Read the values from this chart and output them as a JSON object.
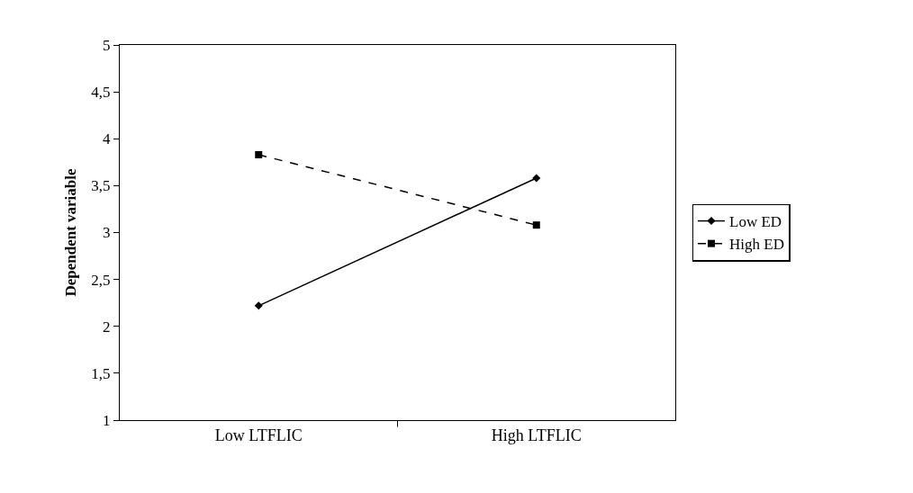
{
  "chart_data": {
    "type": "line",
    "ylabel": "Dependent variable",
    "categories": [
      "Low LTFLIC",
      "High LTFLIC"
    ],
    "series": [
      {
        "name": "Low ED",
        "color": "#000000",
        "values": [
          2.22,
          3.58
        ],
        "marker": "diamond",
        "line_style": "solid"
      },
      {
        "name": "High ED",
        "color": "#000000",
        "values": [
          3.83,
          3.08
        ],
        "marker": "square",
        "line_style": "dashed"
      }
    ],
    "ylim": [
      1,
      5
    ],
    "yticks": [
      1,
      {
        "value": 1.5,
        "label": "1,5"
      },
      2,
      {
        "value": 2.5,
        "label": "2,5"
      },
      3,
      {
        "value": 3.5,
        "label": "3,5"
      },
      4,
      {
        "value": 4.5,
        "label": "4,5"
      },
      5
    ],
    "grid": false,
    "legend": "right"
  }
}
